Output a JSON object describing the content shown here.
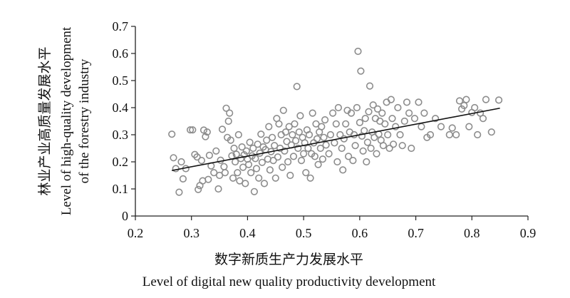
{
  "chart_data": {
    "type": "scatter",
    "title": "",
    "xlabel_cn": "数字新质生产力发展水平",
    "xlabel_en": "Level of digital new quality productivity development",
    "ylabel_cn": "林业产业高质量发展水平",
    "ylabel_en_1": "Level of high-quality development",
    "ylabel_en_2": "of the forestry industry",
    "xlim": [
      0.2,
      0.9
    ],
    "ylim": [
      0,
      0.7
    ],
    "x_ticks": [
      "0.2",
      "0.3",
      "0.4",
      "0.5",
      "0.6",
      "0.7",
      "0.8",
      "0.9"
    ],
    "y_ticks": [
      "0",
      "0.1",
      "0.2",
      "0.3",
      "0.4",
      "0.5",
      "0.6",
      "0.7"
    ],
    "grid": false,
    "legend": "none",
    "marker": "open-circle",
    "marker_color": "#8c8c8c",
    "trendline": {
      "x": [
        0.265,
        0.85
      ],
      "y": [
        0.168,
        0.398
      ],
      "color": "#111111"
    },
    "points": [
      [
        0.265,
        0.302
      ],
      [
        0.268,
        0.215
      ],
      [
        0.272,
        0.175
      ],
      [
        0.278,
        0.088
      ],
      [
        0.282,
        0.2
      ],
      [
        0.285,
        0.137
      ],
      [
        0.29,
        0.175
      ],
      [
        0.298,
        0.318
      ],
      [
        0.302,
        0.318
      ],
      [
        0.306,
        0.227
      ],
      [
        0.31,
        0.218
      ],
      [
        0.312,
        0.098
      ],
      [
        0.315,
        0.112
      ],
      [
        0.318,
        0.205
      ],
      [
        0.32,
        0.13
      ],
      [
        0.322,
        0.317
      ],
      [
        0.325,
        0.293
      ],
      [
        0.328,
        0.31
      ],
      [
        0.33,
        0.135
      ],
      [
        0.332,
        0.224
      ],
      [
        0.335,
        0.185
      ],
      [
        0.34,
        0.16
      ],
      [
        0.344,
        0.24
      ],
      [
        0.348,
        0.1
      ],
      [
        0.35,
        0.15
      ],
      [
        0.352,
        0.206
      ],
      [
        0.355,
        0.32
      ],
      [
        0.358,
        0.182
      ],
      [
        0.36,
        0.16
      ],
      [
        0.362,
        0.398
      ],
      [
        0.364,
        0.29
      ],
      [
        0.366,
        0.35
      ],
      [
        0.368,
        0.38
      ],
      [
        0.37,
        0.28
      ],
      [
        0.372,
        0.222
      ],
      [
        0.374,
        0.14
      ],
      [
        0.376,
        0.25
      ],
      [
        0.378,
        0.2
      ],
      [
        0.38,
        0.228
      ],
      [
        0.382,
        0.16
      ],
      [
        0.384,
        0.3
      ],
      [
        0.386,
        0.13
      ],
      [
        0.388,
        0.212
      ],
      [
        0.39,
        0.255
      ],
      [
        0.392,
        0.18
      ],
      [
        0.394,
        0.226
      ],
      [
        0.396,
        0.12
      ],
      [
        0.398,
        0.24
      ],
      [
        0.4,
        0.21
      ],
      [
        0.402,
        0.19
      ],
      [
        0.404,
        0.272
      ],
      [
        0.406,
        0.16
      ],
      [
        0.408,
        0.222
      ],
      [
        0.41,
        0.25
      ],
      [
        0.412,
        0.09
      ],
      [
        0.414,
        0.212
      ],
      [
        0.416,
        0.175
      ],
      [
        0.418,
        0.265
      ],
      [
        0.42,
        0.14
      ],
      [
        0.422,
        0.232
      ],
      [
        0.424,
        0.302
      ],
      [
        0.426,
        0.198
      ],
      [
        0.428,
        0.255
      ],
      [
        0.43,
        0.12
      ],
      [
        0.432,
        0.245
      ],
      [
        0.434,
        0.28
      ],
      [
        0.436,
        0.21
      ],
      [
        0.438,
        0.33
      ],
      [
        0.44,
        0.17
      ],
      [
        0.442,
        0.238
      ],
      [
        0.444,
        0.29
      ],
      [
        0.446,
        0.205
      ],
      [
        0.448,
        0.26
      ],
      [
        0.45,
        0.14
      ],
      [
        0.452,
        0.36
      ],
      [
        0.454,
        0.218
      ],
      [
        0.456,
        0.34
      ],
      [
        0.458,
        0.25
      ],
      [
        0.46,
        0.3
      ],
      [
        0.462,
        0.18
      ],
      [
        0.464,
        0.39
      ],
      [
        0.466,
        0.24
      ],
      [
        0.468,
        0.31
      ],
      [
        0.47,
        0.275
      ],
      [
        0.472,
        0.2
      ],
      [
        0.474,
        0.33
      ],
      [
        0.476,
        0.15
      ],
      [
        0.478,
        0.262
      ],
      [
        0.48,
        0.3
      ],
      [
        0.482,
        0.22
      ],
      [
        0.484,
        0.34
      ],
      [
        0.486,
        0.278
      ],
      [
        0.488,
        0.478
      ],
      [
        0.49,
        0.25
      ],
      [
        0.492,
        0.31
      ],
      [
        0.494,
        0.37
      ],
      [
        0.496,
        0.205
      ],
      [
        0.498,
        0.29
      ],
      [
        0.5,
        0.23
      ],
      [
        0.502,
        0.27
      ],
      [
        0.504,
        0.16
      ],
      [
        0.506,
        0.318
      ],
      [
        0.508,
        0.25
      ],
      [
        0.51,
        0.3
      ],
      [
        0.512,
        0.14
      ],
      [
        0.514,
        0.23
      ],
      [
        0.516,
        0.38
      ],
      [
        0.518,
        0.27
      ],
      [
        0.52,
        0.22
      ],
      [
        0.522,
        0.34
      ],
      [
        0.524,
        0.285
      ],
      [
        0.526,
        0.19
      ],
      [
        0.528,
        0.31
      ],
      [
        0.53,
        0.25
      ],
      [
        0.532,
        0.33
      ],
      [
        0.534,
        0.21
      ],
      [
        0.536,
        0.29
      ],
      [
        0.538,
        0.355
      ],
      [
        0.54,
        0.262
      ],
      [
        0.545,
        0.23
      ],
      [
        0.548,
        0.3
      ],
      [
        0.552,
        0.38
      ],
      [
        0.555,
        0.27
      ],
      [
        0.558,
        0.34
      ],
      [
        0.56,
        0.2
      ],
      [
        0.562,
        0.4
      ],
      [
        0.565,
        0.3
      ],
      [
        0.568,
        0.25
      ],
      [
        0.57,
        0.17
      ],
      [
        0.572,
        0.285
      ],
      [
        0.575,
        0.34
      ],
      [
        0.578,
        0.39
      ],
      [
        0.58,
        0.22
      ],
      [
        0.582,
        0.31
      ],
      [
        0.585,
        0.38
      ],
      [
        0.588,
        0.205
      ],
      [
        0.59,
        0.3
      ],
      [
        0.592,
        0.26
      ],
      [
        0.595,
        0.4
      ],
      [
        0.597,
        0.608
      ],
      [
        0.6,
        0.345
      ],
      [
        0.602,
        0.535
      ],
      [
        0.604,
        0.295
      ],
      [
        0.606,
        0.24
      ],
      [
        0.608,
        0.315
      ],
      [
        0.61,
        0.36
      ],
      [
        0.612,
        0.2
      ],
      [
        0.614,
        0.272
      ],
      [
        0.616,
        0.385
      ],
      [
        0.618,
        0.48
      ],
      [
        0.62,
        0.25
      ],
      [
        0.622,
        0.31
      ],
      [
        0.624,
        0.41
      ],
      [
        0.626,
        0.29
      ],
      [
        0.628,
        0.36
      ],
      [
        0.63,
        0.23
      ],
      [
        0.632,
        0.395
      ],
      [
        0.634,
        0.302
      ],
      [
        0.636,
        0.35
      ],
      [
        0.638,
        0.28
      ],
      [
        0.64,
        0.38
      ],
      [
        0.642,
        0.26
      ],
      [
        0.645,
        0.34
      ],
      [
        0.648,
        0.42
      ],
      [
        0.65,
        0.3
      ],
      [
        0.653,
        0.25
      ],
      [
        0.656,
        0.43
      ],
      [
        0.658,
        0.36
      ],
      [
        0.66,
        0.265
      ],
      [
        0.664,
        0.33
      ],
      [
        0.668,
        0.4
      ],
      [
        0.672,
        0.3
      ],
      [
        0.676,
        0.26
      ],
      [
        0.68,
        0.35
      ],
      [
        0.684,
        0.42
      ],
      [
        0.688,
        0.38
      ],
      [
        0.692,
        0.25
      ],
      [
        0.698,
        0.36
      ],
      [
        0.705,
        0.42
      ],
      [
        0.71,
        0.33
      ],
      [
        0.715,
        0.38
      ],
      [
        0.72,
        0.29
      ],
      [
        0.726,
        0.3
      ],
      [
        0.735,
        0.36
      ],
      [
        0.745,
        0.33
      ],
      [
        0.76,
        0.3
      ],
      [
        0.765,
        0.325
      ],
      [
        0.772,
        0.3
      ],
      [
        0.778,
        0.425
      ],
      [
        0.782,
        0.395
      ],
      [
        0.786,
        0.408
      ],
      [
        0.79,
        0.43
      ],
      [
        0.795,
        0.33
      ],
      [
        0.8,
        0.382
      ],
      [
        0.805,
        0.4
      ],
      [
        0.81,
        0.3
      ],
      [
        0.815,
        0.38
      ],
      [
        0.82,
        0.36
      ],
      [
        0.825,
        0.43
      ],
      [
        0.835,
        0.31
      ],
      [
        0.848,
        0.428
      ]
    ]
  }
}
